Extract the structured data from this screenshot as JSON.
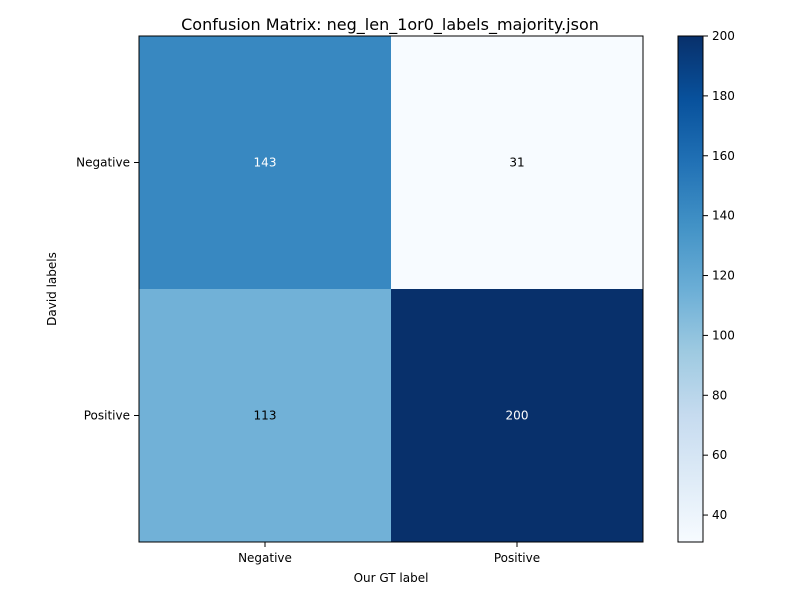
{
  "chart_data": {
    "type": "heatmap",
    "title": "Confusion Matrix: neg_len_1or0_labels_majority.json",
    "xlabel": "Our GT label",
    "ylabel": "David labels",
    "x_categories": [
      "Negative",
      "Positive"
    ],
    "y_categories": [
      "Negative",
      "Positive"
    ],
    "values": [
      [
        143,
        31
      ],
      [
        113,
        200
      ]
    ],
    "colormap": "Blues",
    "colorbar": {
      "min": 31,
      "max": 200,
      "ticks": [
        40,
        60,
        80,
        100,
        120,
        140,
        160,
        180,
        200
      ]
    },
    "grid": false,
    "text_color_dark": "#000000",
    "text_color_light": "#ffffff"
  }
}
